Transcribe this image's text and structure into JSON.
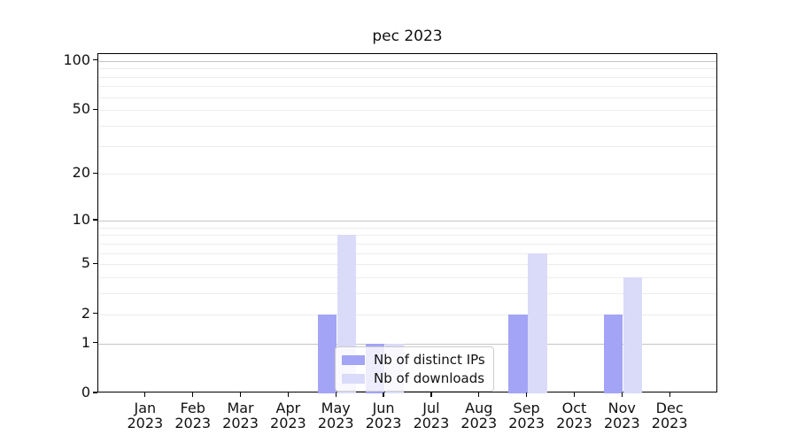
{
  "page": {
    "title": "pec 2023"
  },
  "chart_data": {
    "type": "bar",
    "title": "pec 2023",
    "categories": [
      "Jan 2023",
      "Feb 2023",
      "Mar 2023",
      "Apr 2023",
      "May 2023",
      "Jun 2023",
      "Jul 2023",
      "Aug 2023",
      "Sep 2023",
      "Oct 2023",
      "Nov 2023",
      "Dec 2023"
    ],
    "series": [
      {
        "name": "Nb of distinct IPs",
        "color": "#a3a4f5",
        "values": [
          0,
          0,
          0,
          0,
          2,
          1,
          0,
          0,
          2,
          0,
          2,
          0
        ]
      },
      {
        "name": "Nb of downloads",
        "color": "#dadbf9",
        "values": [
          0,
          0,
          0,
          0,
          8,
          1,
          0,
          0,
          6,
          0,
          4,
          0
        ]
      }
    ],
    "xlabel": "",
    "ylabel": "",
    "yscale": "log1p",
    "ylim": [
      0,
      110
    ],
    "yticks": [
      0,
      1,
      2,
      5,
      10,
      20,
      50,
      100
    ],
    "major_gridlines": [
      1,
      10,
      100
    ],
    "minor_gridlines": [
      2,
      3,
      4,
      5,
      6,
      7,
      8,
      9,
      20,
      30,
      40,
      50,
      60,
      70,
      80,
      90
    ],
    "grid": "on",
    "legend_position": "inside lower center",
    "colors": {
      "major_grid": "#c6c6c6",
      "minor_grid": "#ececec",
      "axis": "#000000",
      "background": "#ffffff"
    }
  }
}
